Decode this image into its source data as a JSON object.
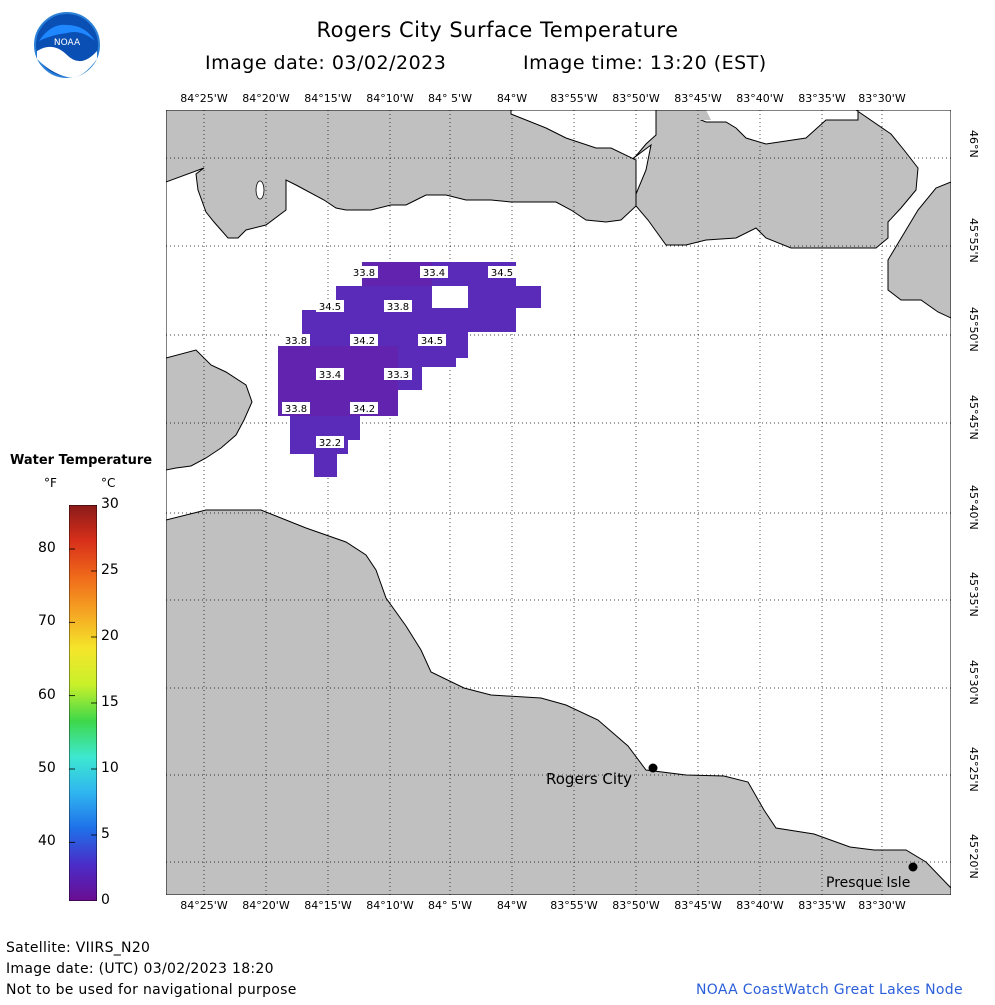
{
  "header": {
    "title": "Rogers City Surface Temperature",
    "image_date": "Image date: 03/02/2023",
    "image_time": "Image time: 13:20 (EST)"
  },
  "logo": {
    "text": "NOAA"
  },
  "map": {
    "lon_labels": [
      "84°25'W",
      "84°20'W",
      "84°15'W",
      "84°10'W",
      "84° 5'W",
      "84°W",
      "83°55'W",
      "83°50'W",
      "83°45'W",
      "83°40'W",
      "83°35'W",
      "83°30'W"
    ],
    "lat_labels": [
      "46°N",
      "45°55'N",
      "45°50'N",
      "45°45'N",
      "45°40'N",
      "45°35'N",
      "45°30'N",
      "45°25'N",
      "45°20'N"
    ],
    "temp_labels": [
      "33.8",
      "33.4",
      "34.5",
      "34.5",
      "33.8",
      "33.8",
      "34.2",
      "34.5",
      "33.4",
      "33.3",
      "33.8",
      "34.2",
      "32.2"
    ],
    "places": [
      {
        "name": "Rogers City"
      },
      {
        "name": "Presque Isle"
      }
    ]
  },
  "legend": {
    "title": "Water Temperature",
    "unit_f": "°F",
    "unit_c": "°C",
    "f_ticks": [
      "80",
      "70",
      "60",
      "50",
      "40"
    ],
    "c_ticks": [
      "30",
      "25",
      "20",
      "15",
      "10",
      "5",
      "0"
    ],
    "colors": [
      "#6a0d91",
      "#4b2cc8",
      "#1f6fe8",
      "#2fb5f0",
      "#3de8d0",
      "#3ed84a",
      "#c8f02a",
      "#f5e62a",
      "#f5a623",
      "#f06a1a",
      "#d8301a",
      "#8a1a1a"
    ]
  },
  "footer": {
    "satellite": "Satellite: VIIRS_N20",
    "utc_date": "Image date: (UTC) 03/02/2023  18:20",
    "disclaimer": "Not to be used for navigational purpose",
    "credit": "NOAA CoastWatch Great Lakes Node"
  }
}
